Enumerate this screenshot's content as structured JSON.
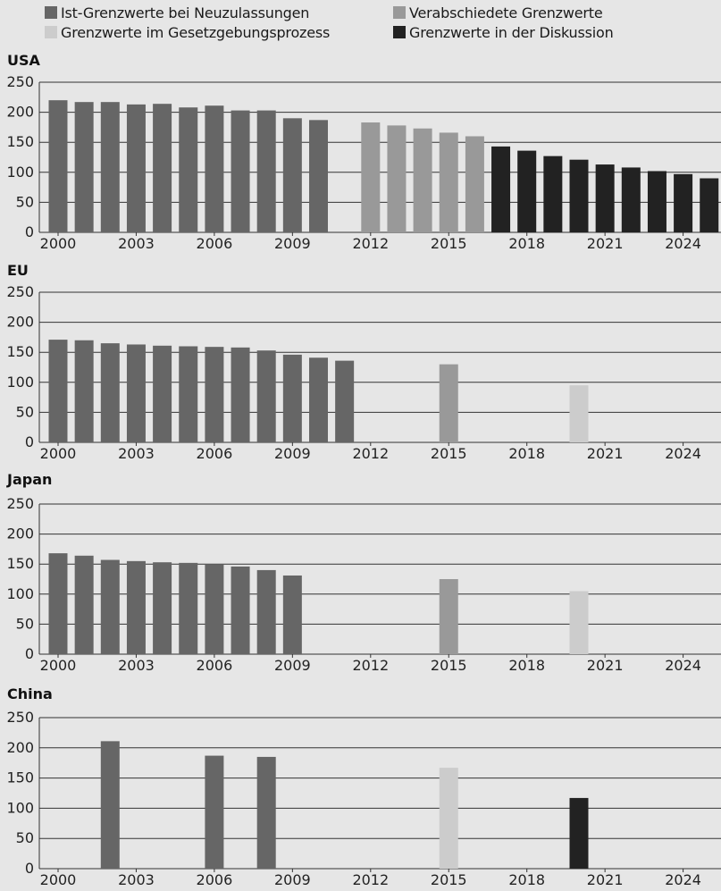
{
  "legend": {
    "items": [
      {
        "label": "Ist-Grenzwerte bei Neuzulassungen",
        "color": "#666666"
      },
      {
        "label": "Verabschiedete Grenzwerte",
        "color": "#999999"
      },
      {
        "label": "Grenzwerte im Gesetzgebungsprozess",
        "color": "#cccccc"
      },
      {
        "label": "Grenzwerte in der Diskussion",
        "color": "#222222"
      }
    ]
  },
  "chart_data": [
    {
      "type": "bar",
      "title": "USA",
      "xlabel": "",
      "ylabel": "",
      "ylim": [
        0,
        250
      ],
      "xlim": [
        2000,
        2025
      ],
      "yticks": [
        0,
        50,
        100,
        150,
        200,
        250
      ],
      "xticks": [
        2000,
        2003,
        2006,
        2009,
        2012,
        2015,
        2018,
        2021,
        2024
      ],
      "grid": true,
      "series": [
        {
          "name": "Ist-Grenzwerte bei Neuzulassungen",
          "color": "#666666",
          "x": [
            2000,
            2001,
            2002,
            2003,
            2004,
            2005,
            2006,
            2007,
            2008,
            2009,
            2010
          ],
          "values": [
            220,
            217,
            217,
            213,
            214,
            208,
            211,
            203,
            203,
            190,
            187
          ]
        },
        {
          "name": "Verabschiedete Grenzwerte",
          "color": "#999999",
          "x": [
            2012,
            2013,
            2014,
            2015,
            2016
          ],
          "values": [
            183,
            178,
            173,
            166,
            160
          ]
        },
        {
          "name": "Grenzwerte in der Diskussion",
          "color": "#222222",
          "x": [
            2017,
            2018,
            2019,
            2020,
            2021,
            2022,
            2023,
            2024,
            2025
          ],
          "values": [
            143,
            136,
            127,
            121,
            113,
            108,
            102,
            97,
            90
          ]
        }
      ]
    },
    {
      "type": "bar",
      "title": "EU",
      "xlabel": "",
      "ylabel": "",
      "ylim": [
        0,
        250
      ],
      "xlim": [
        2000,
        2025
      ],
      "yticks": [
        0,
        50,
        100,
        150,
        200,
        250
      ],
      "xticks": [
        2000,
        2003,
        2006,
        2009,
        2012,
        2015,
        2018,
        2021,
        2024
      ],
      "grid": true,
      "series": [
        {
          "name": "Ist-Grenzwerte bei Neuzulassungen",
          "color": "#666666",
          "x": [
            2000,
            2001,
            2002,
            2003,
            2004,
            2005,
            2006,
            2007,
            2008,
            2009,
            2010,
            2011
          ],
          "values": [
            171,
            170,
            165,
            163,
            161,
            160,
            159,
            158,
            153,
            146,
            141,
            136
          ]
        },
        {
          "name": "Verabschiedete Grenzwerte",
          "color": "#999999",
          "x": [
            2015
          ],
          "values": [
            130
          ]
        },
        {
          "name": "Grenzwerte im Gesetzgebungsprozess",
          "color": "#cccccc",
          "x": [
            2020
          ],
          "values": [
            95
          ]
        }
      ]
    },
    {
      "type": "bar",
      "title": "Japan",
      "xlabel": "",
      "ylabel": "",
      "ylim": [
        0,
        250
      ],
      "xlim": [
        2000,
        2025
      ],
      "yticks": [
        0,
        50,
        100,
        150,
        200,
        250
      ],
      "xticks": [
        2000,
        2003,
        2006,
        2009,
        2012,
        2015,
        2018,
        2021,
        2024
      ],
      "grid": true,
      "series": [
        {
          "name": "Ist-Grenzwerte bei Neuzulassungen",
          "color": "#666666",
          "x": [
            2000,
            2001,
            2002,
            2003,
            2004,
            2005,
            2006,
            2007,
            2008,
            2009
          ],
          "values": [
            168,
            164,
            157,
            155,
            153,
            152,
            150,
            146,
            140,
            131
          ]
        },
        {
          "name": "Verabschiedete Grenzwerte",
          "color": "#999999",
          "x": [
            2015
          ],
          "values": [
            125
          ]
        },
        {
          "name": "Grenzwerte im Gesetzgebungsprozess",
          "color": "#cccccc",
          "x": [
            2020
          ],
          "values": [
            105
          ]
        }
      ]
    },
    {
      "type": "bar",
      "title": "China",
      "xlabel": "",
      "ylabel": "",
      "ylim": [
        0,
        250
      ],
      "xlim": [
        2000,
        2025
      ],
      "yticks": [
        0,
        50,
        100,
        150,
        200,
        250
      ],
      "xticks": [
        2000,
        2003,
        2006,
        2009,
        2012,
        2015,
        2018,
        2021,
        2024
      ],
      "grid": true,
      "series": [
        {
          "name": "Ist-Grenzwerte bei Neuzulassungen",
          "color": "#666666",
          "x": [
            2002,
            2006,
            2008
          ],
          "values": [
            211,
            187,
            185
          ]
        },
        {
          "name": "Grenzwerte im Gesetzgebungsprozess",
          "color": "#cccccc",
          "x": [
            2015
          ],
          "values": [
            167
          ]
        },
        {
          "name": "Grenzwerte in der Diskussion",
          "color": "#222222",
          "x": [
            2020
          ],
          "values": [
            117
          ]
        }
      ]
    }
  ]
}
